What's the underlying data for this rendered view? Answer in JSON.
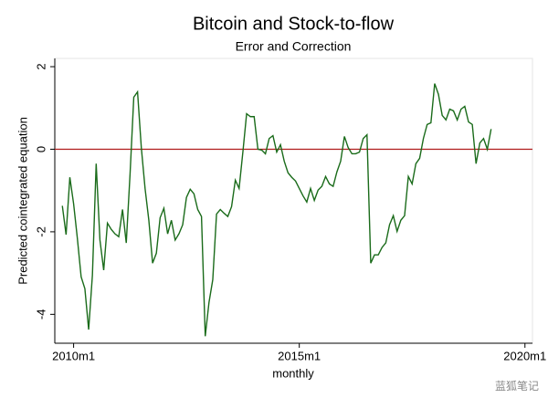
{
  "chart_data": {
    "type": "line",
    "title": "Bitcoin and Stock-to-flow",
    "subtitle": "Error and Correction",
    "x_label": "monthly",
    "y_label": "Predicted cointegrated equation",
    "x_start": "2009m10",
    "series": [
      {
        "name": "Predicted cointegrated equation",
        "color": "#1a6b1a",
        "values": [
          -1.37,
          -2.07,
          -0.68,
          -1.32,
          -2.16,
          -3.09,
          -3.38,
          -4.37,
          -3.05,
          -0.35,
          -2.2,
          -2.93,
          -1.79,
          -1.94,
          -2.05,
          -2.12,
          -1.46,
          -2.27,
          -0.62,
          1.26,
          1.39,
          0.04,
          -0.95,
          -1.72,
          -2.76,
          -2.52,
          -1.66,
          -1.43,
          -2.05,
          -1.72,
          -2.2,
          -2.05,
          -1.83,
          -1.17,
          -0.97,
          -1.08,
          -1.46,
          -1.63,
          -4.53,
          -3.71,
          -3.16,
          -1.57,
          -1.46,
          -1.55,
          -1.63,
          -1.39,
          -0.75,
          -0.95,
          -0.07,
          0.86,
          0.79,
          0.79,
          0,
          -0.02,
          -0.11,
          0.26,
          0.33,
          -0.07,
          0.11,
          -0.29,
          -0.57,
          -0.68,
          -0.77,
          -0.95,
          -1.13,
          -1.28,
          -0.95,
          -1.24,
          -0.99,
          -0.9,
          -0.66,
          -0.84,
          -0.9,
          -0.55,
          -0.29,
          0.31,
          0.04,
          -0.11,
          -0.11,
          -0.07,
          0.26,
          0.35,
          -2.76,
          -2.56,
          -2.56,
          -2.38,
          -2.27,
          -1.83,
          -1.61,
          -1.99,
          -1.72,
          -1.61,
          -0.66,
          -0.84,
          -0.35,
          -0.22,
          0.26,
          0.6,
          0.64,
          1.59,
          1.33,
          0.82,
          0.71,
          0.97,
          0.93,
          0.71,
          0.97,
          1.04,
          0.66,
          0.6,
          -0.35,
          0.15,
          0.26,
          0,
          0.49
        ]
      }
    ],
    "xlim": [
      "2009m8",
      "2020m3"
    ],
    "xticks": [
      "2010m1",
      "2015m1",
      "2020m1"
    ],
    "ylim": [
      -4.7,
      2.2
    ],
    "yticks": [
      -4,
      -2,
      0,
      2
    ],
    "reference_line": {
      "value": 0,
      "color": "#b01c1c"
    },
    "watermark": "蓝狐笔记"
  }
}
